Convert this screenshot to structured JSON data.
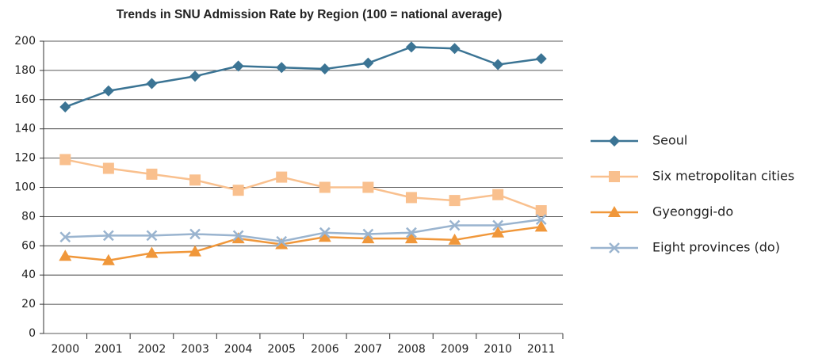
{
  "chart_data": {
    "type": "line",
    "title": "Trends in SNU Admission Rate by Region (100 = national average)",
    "categories": [
      "2000",
      "2001",
      "2002",
      "2003",
      "2004",
      "2005",
      "2006",
      "2007",
      "2008",
      "2009",
      "2010",
      "2011"
    ],
    "series": [
      {
        "name": "Seoul",
        "color": "#3b7494",
        "marker": "diamond",
        "values": [
          155,
          166,
          171,
          176,
          183,
          182,
          181,
          185,
          196,
          195,
          184,
          188
        ]
      },
      {
        "name": "Six metropolitan cities",
        "color": "#f9c08e",
        "marker": "square",
        "values": [
          119,
          113,
          109,
          105,
          98,
          107,
          100,
          100,
          93,
          91,
          95,
          84
        ]
      },
      {
        "name": "Gyeonggi-do",
        "color": "#f0973a",
        "marker": "triangle",
        "values": [
          53,
          50,
          55,
          56,
          65,
          61,
          66,
          65,
          65,
          64,
          69,
          73
        ]
      },
      {
        "name": "Eight provinces (do)",
        "color": "#9ab4cf",
        "marker": "x",
        "values": [
          66,
          67,
          67,
          68,
          67,
          63,
          69,
          68,
          69,
          74,
          74,
          78
        ]
      }
    ],
    "ylim": [
      0,
      200
    ],
    "yticks": [
      0,
      20,
      40,
      60,
      80,
      100,
      120,
      140,
      160,
      180,
      200
    ],
    "grid": true,
    "legend": "right"
  }
}
